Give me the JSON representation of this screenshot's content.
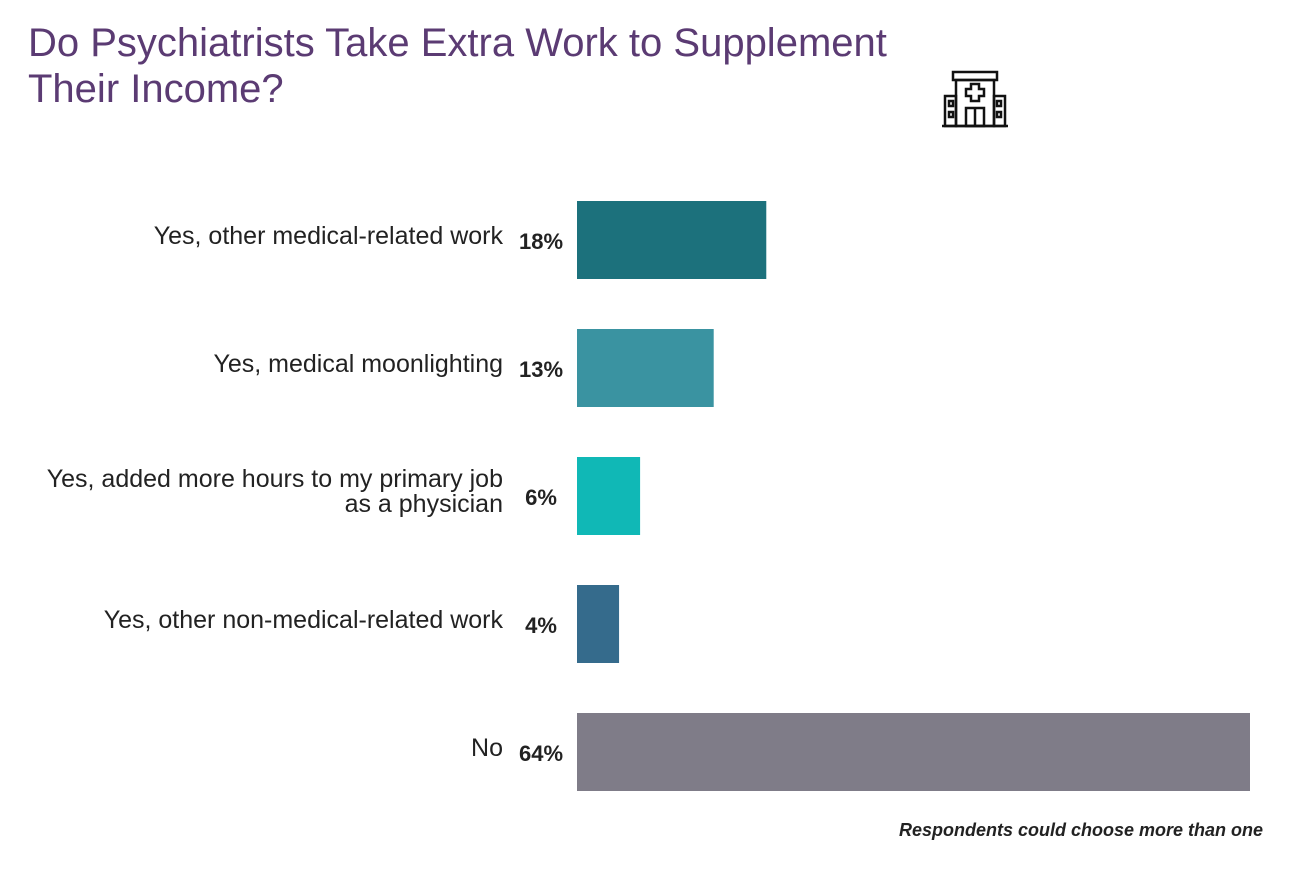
{
  "chart_data": {
    "type": "bar",
    "orientation": "horizontal",
    "title": "Do Psychiatrists Take Extra Work to Supplement Their Income?",
    "categories": [
      "Yes, other medical-related work",
      "Yes, medical moonlighting",
      "Yes, added more hours to my primary job as a physician",
      "Yes, other non-medical-related work",
      "No"
    ],
    "values": [
      18,
      13,
      6,
      4,
      64
    ],
    "value_labels": [
      "18%",
      "13%",
      "6%",
      "4%",
      "64%"
    ],
    "colors": [
      "#1c717c",
      "#3a93a1",
      "#10b8b6",
      "#356b8c",
      "#7f7c88"
    ],
    "note": "Respondents could choose more than one"
  }
}
